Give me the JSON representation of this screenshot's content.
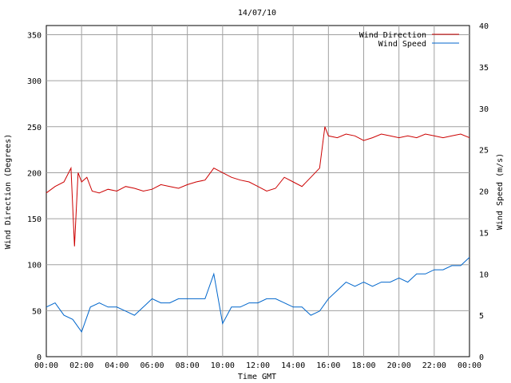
{
  "chart_data": {
    "type": "line",
    "title": "14/07/10",
    "xlabel": "Time GMT",
    "ylabel_left": "Wind Direction (Degrees)",
    "ylabel_right": "Wind Speed (m/s)",
    "x_ticks": [
      "00:00",
      "02:00",
      "04:00",
      "06:00",
      "08:00",
      "10:00",
      "12:00",
      "14:00",
      "16:00",
      "18:00",
      "20:00",
      "22:00",
      "00:00"
    ],
    "ylim_left": [
      0,
      360
    ],
    "ylim_right": [
      0,
      40
    ],
    "y_ticks_left": [
      0,
      50,
      100,
      150,
      200,
      250,
      300,
      350
    ],
    "y_ticks_right": [
      0,
      5,
      10,
      15,
      20,
      25,
      30,
      35,
      40
    ],
    "grid": true,
    "legend_placement": "top-right",
    "series": [
      {
        "name": "Wind Direction",
        "axis": "left",
        "color": "#cc0000",
        "x_hours": [
          0,
          0.5,
          1,
          1.4,
          1.6,
          1.8,
          2,
          2.3,
          2.6,
          3,
          3.5,
          4,
          4.5,
          5,
          5.5,
          6,
          6.5,
          7,
          7.5,
          8,
          8.5,
          9,
          9.5,
          10,
          10.5,
          11,
          11.5,
          12,
          12.5,
          13,
          13.5,
          14,
          14.5,
          15,
          15.5,
          15.8,
          16,
          16.5,
          17,
          17.5,
          18,
          18.5,
          19,
          19.5,
          20,
          20.5,
          21,
          21.5,
          22,
          22.5,
          23,
          23.5,
          24
        ],
        "values": [
          178,
          185,
          190,
          205,
          120,
          200,
          190,
          195,
          180,
          178,
          182,
          180,
          185,
          183,
          180,
          182,
          187,
          185,
          183,
          187,
          190,
          192,
          205,
          200,
          195,
          192,
          190,
          185,
          180,
          183,
          195,
          190,
          185,
          195,
          205,
          250,
          240,
          238,
          242,
          240,
          235,
          238,
          242,
          240,
          238,
          240,
          238,
          242,
          240,
          238,
          240,
          242,
          238
        ]
      },
      {
        "name": "Wind Speed",
        "axis": "right",
        "color": "#0066cc",
        "x_hours": [
          0,
          0.5,
          1,
          1.5,
          2,
          2.5,
          3,
          3.5,
          4,
          4.5,
          5,
          5.5,
          6,
          6.5,
          7,
          7.5,
          8,
          8.5,
          9,
          9.5,
          10,
          10.5,
          11,
          11.5,
          12,
          12.5,
          13,
          13.5,
          14,
          14.5,
          15,
          15.5,
          16,
          16.5,
          17,
          17.5,
          18,
          18.5,
          19,
          19.5,
          20,
          20.5,
          21,
          21.5,
          22,
          22.5,
          23,
          23.5,
          24
        ],
        "values": [
          6,
          6.5,
          5,
          4.5,
          3,
          6,
          6.5,
          6,
          6,
          5.5,
          5,
          6,
          7,
          6.5,
          6.5,
          7,
          7,
          7,
          7,
          10,
          4,
          6,
          6,
          6.5,
          6.5,
          7,
          7,
          6.5,
          6,
          6,
          5,
          5.5,
          7,
          8,
          9,
          8.5,
          9,
          8.5,
          9,
          9,
          9.5,
          9,
          10,
          10,
          10.5,
          10.5,
          11,
          11,
          12
        ]
      }
    ]
  }
}
